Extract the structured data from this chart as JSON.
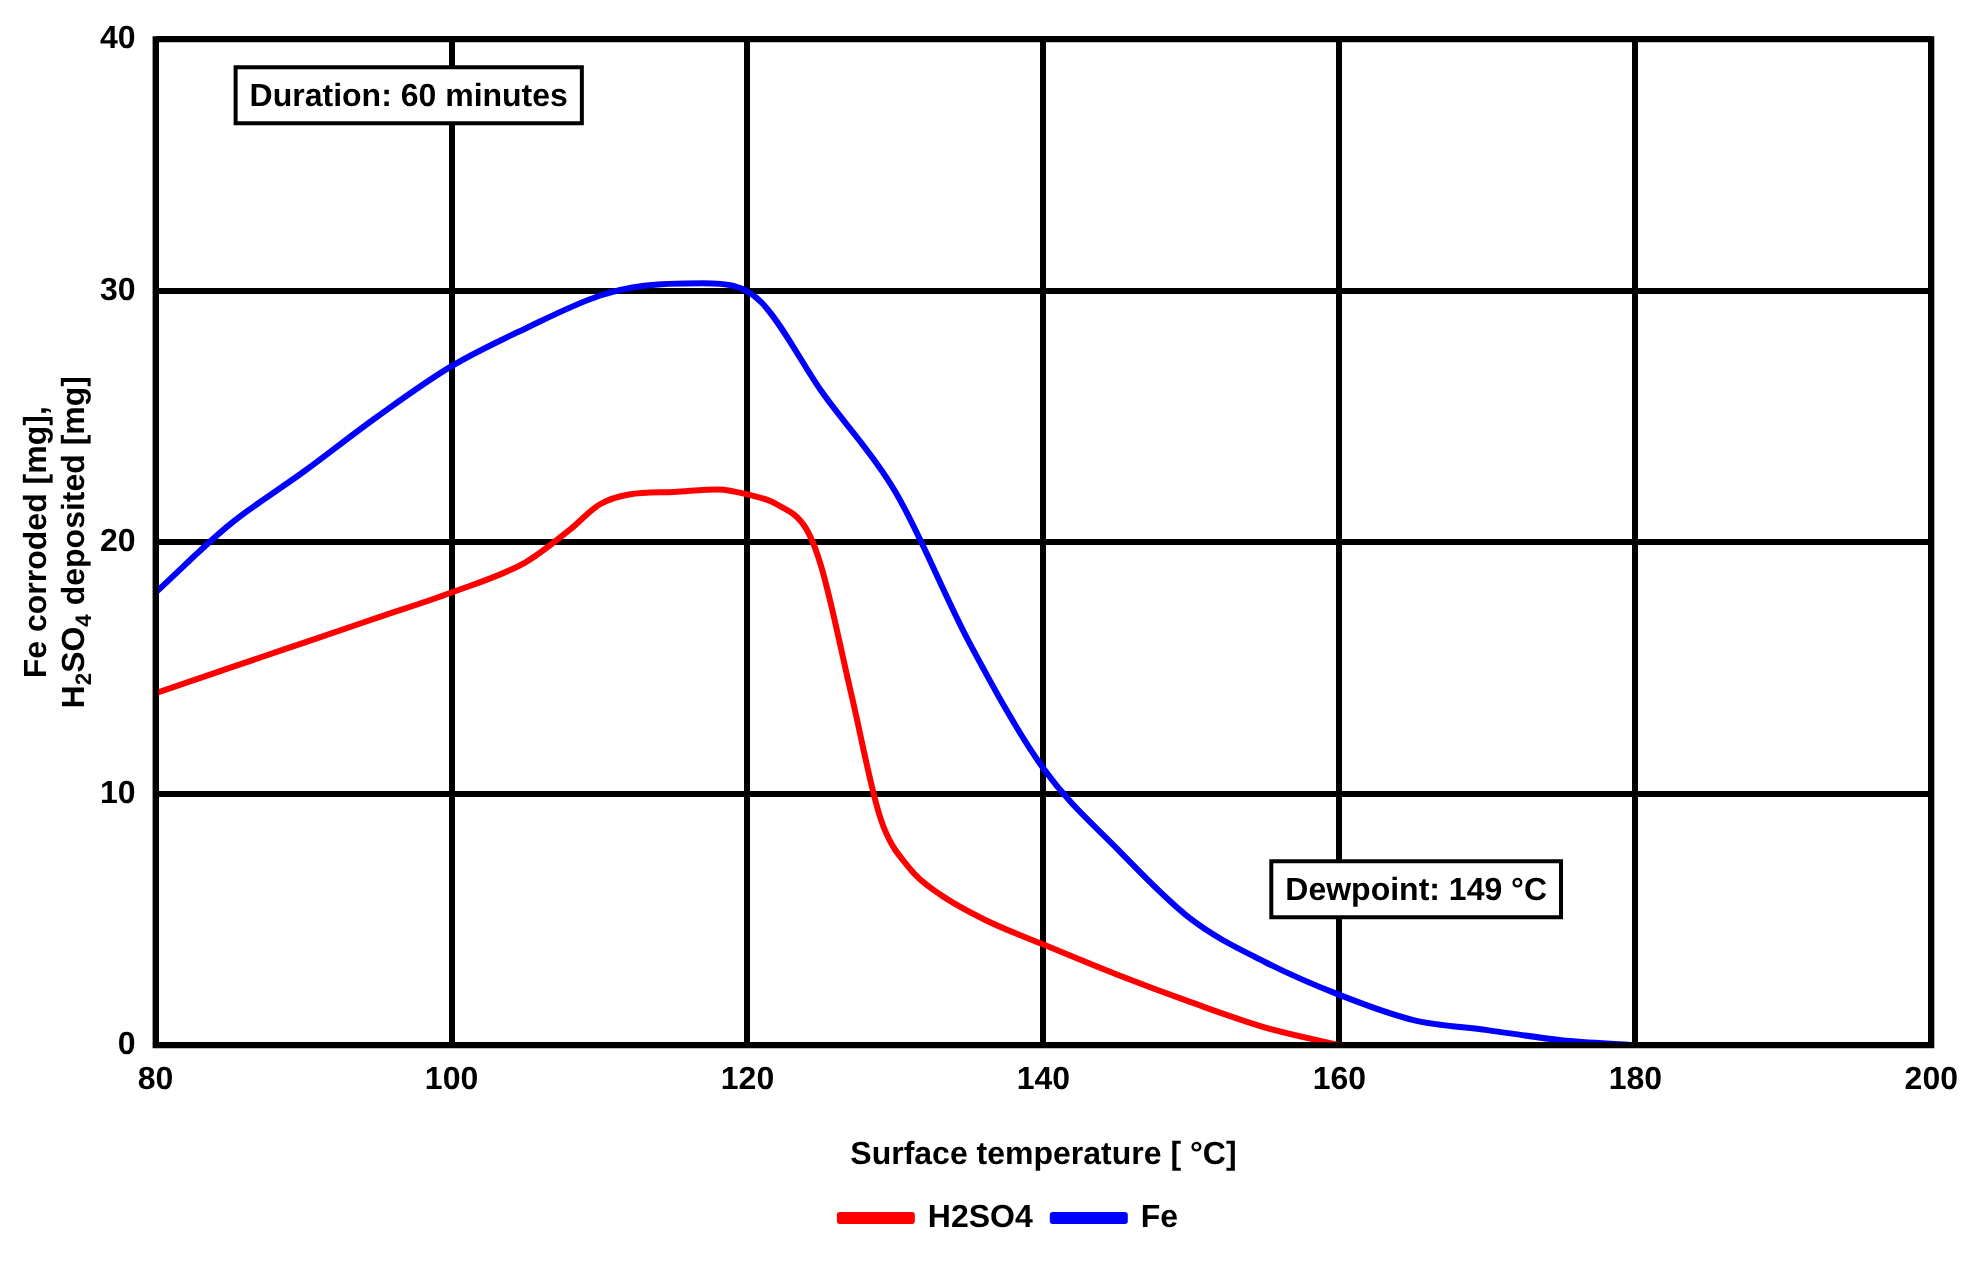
{
  "chart_data": {
    "type": "line",
    "xlabel": "Surface temperature [ °C]",
    "ylabel": "Fe corroded [mg],\nH$_{2}$SO$_{4}$ deposited [mg]",
    "xlim": [
      80,
      200
    ],
    "xticks": [
      80,
      100,
      120,
      140,
      160,
      180,
      200
    ],
    "ylim": [
      0,
      40
    ],
    "yticks": [
      0,
      10,
      20,
      30,
      40
    ],
    "grid": true,
    "legend": "bottom",
    "marker": "none",
    "line_style": "solid",
    "annotations": [
      "Duration: 60 minutes",
      "Dewpoint: 149 °C"
    ],
    "series": [
      {
        "name": "H2SO4",
        "color": "#ff0000",
        "x": [
          80,
          85,
          90,
          95,
          100,
          105,
          108,
          110,
          112,
          115,
          118,
          120,
          122,
          124,
          125,
          127,
          129,
          131,
          133,
          136,
          140,
          145,
          150,
          155,
          160
        ],
        "values": [
          14,
          15,
          16,
          17,
          18,
          19.2,
          20.5,
          21.5,
          21.9,
          22,
          22.1,
          21.9,
          21.5,
          20.5,
          19,
          14,
          9,
          7,
          6,
          5,
          4,
          2.8,
          1.7,
          0.7,
          0
        ]
      },
      {
        "name": "Fe",
        "color": "#0000ff",
        "x": [
          80,
          85,
          90,
          95,
          100,
          105,
          110,
          113,
          117,
          119,
          121,
          125,
          130,
          135,
          140,
          145,
          150,
          155,
          160,
          165,
          170,
          175,
          180
        ],
        "values": [
          18,
          20.7,
          22.8,
          25,
          27,
          28.5,
          29.8,
          30.2,
          30.3,
          30.2,
          29.5,
          26,
          22,
          16,
          11,
          7.8,
          5,
          3.3,
          2,
          1,
          0.6,
          0.2,
          0
        ]
      }
    ]
  }
}
